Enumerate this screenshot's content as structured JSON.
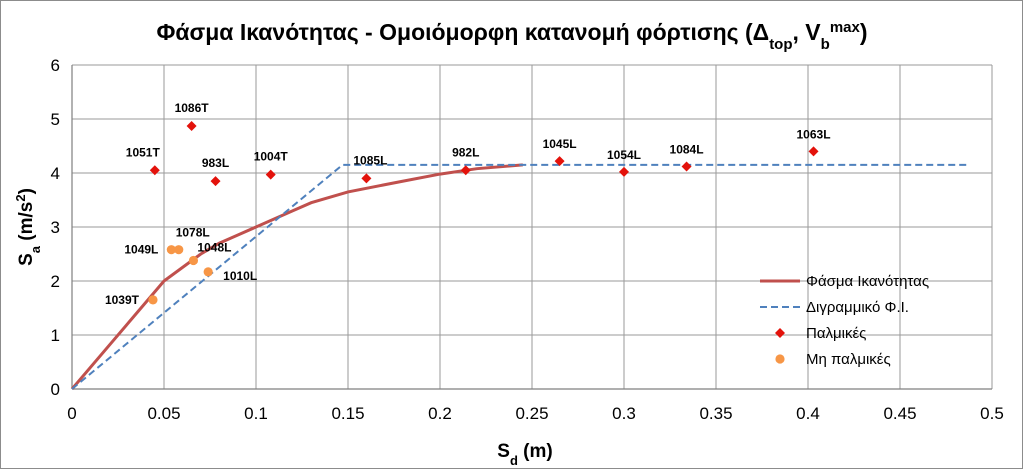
{
  "chart_data": {
    "type": "scatter",
    "title": {
      "main": "Φάσμα Ικανότητας - Ομοιόμορφη κατανομή φόρτισης (Δ",
      "sub1": "top",
      "mid": ", V",
      "sub2": "b",
      "sup": "max",
      "end": ")"
    },
    "xlabel": {
      "base": "S",
      "sub": "d",
      "rest": " (m)"
    },
    "ylabel": {
      "base": "S",
      "sub": "a",
      "rest": " (m/s",
      "sup": "2",
      "end": ")"
    },
    "xlim": [
      0,
      0.5
    ],
    "ylim": [
      0,
      6
    ],
    "x_ticks": [
      0,
      0.05,
      0.1,
      0.15,
      0.2,
      0.25,
      0.3,
      0.35,
      0.4,
      0.45,
      0.5
    ],
    "x_tick_labels": [
      "0",
      "0.05",
      "0.1",
      "0.15",
      "0.2",
      "0.25",
      "0.3",
      "0.35",
      "0.4",
      "0.45",
      "0.5"
    ],
    "y_ticks": [
      0,
      1,
      2,
      3,
      4,
      5,
      6
    ],
    "y_tick_labels": [
      "0",
      "1",
      "2",
      "3",
      "4",
      "5",
      "6"
    ],
    "grid": true,
    "legend_position": "bottom-right",
    "series": [
      {
        "name": "Φάσμα Ικανότητας",
        "kind": "line",
        "color": "#C0504D",
        "dash": "solid",
        "points": [
          [
            0,
            0
          ],
          [
            0.02,
            0.8
          ],
          [
            0.04,
            1.6
          ],
          [
            0.05,
            2.0
          ],
          [
            0.06,
            2.25
          ],
          [
            0.07,
            2.5
          ],
          [
            0.08,
            2.7
          ],
          [
            0.09,
            2.85
          ],
          [
            0.1,
            3.0
          ],
          [
            0.11,
            3.15
          ],
          [
            0.12,
            3.3
          ],
          [
            0.13,
            3.45
          ],
          [
            0.15,
            3.65
          ],
          [
            0.18,
            3.85
          ],
          [
            0.2,
            3.98
          ],
          [
            0.22,
            4.08
          ],
          [
            0.245,
            4.15
          ]
        ]
      },
      {
        "name": "Διγραμμικό Φ.Ι.",
        "kind": "line",
        "color": "#4F81BD",
        "dash": "dashed",
        "points": [
          [
            0,
            0
          ],
          [
            0.147,
            4.15
          ],
          [
            0.488,
            4.15
          ]
        ]
      },
      {
        "name": "Παλμικές",
        "kind": "scatter",
        "marker": "diamond",
        "color": "#E3120B",
        "points": [
          {
            "x": 0.065,
            "y": 4.87,
            "label": "1086T"
          },
          {
            "x": 0.045,
            "y": 4.05,
            "label": "1051T"
          },
          {
            "x": 0.078,
            "y": 3.85,
            "label": "983L"
          },
          {
            "x": 0.108,
            "y": 3.97,
            "label": "1004T"
          },
          {
            "x": 0.16,
            "y": 3.9,
            "label": "1085L"
          },
          {
            "x": 0.214,
            "y": 4.05,
            "label": "982L"
          },
          {
            "x": 0.265,
            "y": 4.22,
            "label": "1045L"
          },
          {
            "x": 0.3,
            "y": 4.02,
            "label": "1054L"
          },
          {
            "x": 0.334,
            "y": 4.12,
            "label": "1084L"
          },
          {
            "x": 0.403,
            "y": 4.4,
            "label": "1063L"
          }
        ]
      },
      {
        "name": "Μη παλμικές",
        "kind": "scatter",
        "marker": "circle",
        "color": "#F79646",
        "points": [
          {
            "x": 0.054,
            "y": 2.58,
            "label": "1049L"
          },
          {
            "x": 0.058,
            "y": 2.58,
            "label": "1078L"
          },
          {
            "x": 0.066,
            "y": 2.38,
            "label": "1048L"
          },
          {
            "x": 0.074,
            "y": 2.17,
            "label": "1010L"
          },
          {
            "x": 0.044,
            "y": 1.65,
            "label": "1039T"
          }
        ]
      }
    ]
  }
}
